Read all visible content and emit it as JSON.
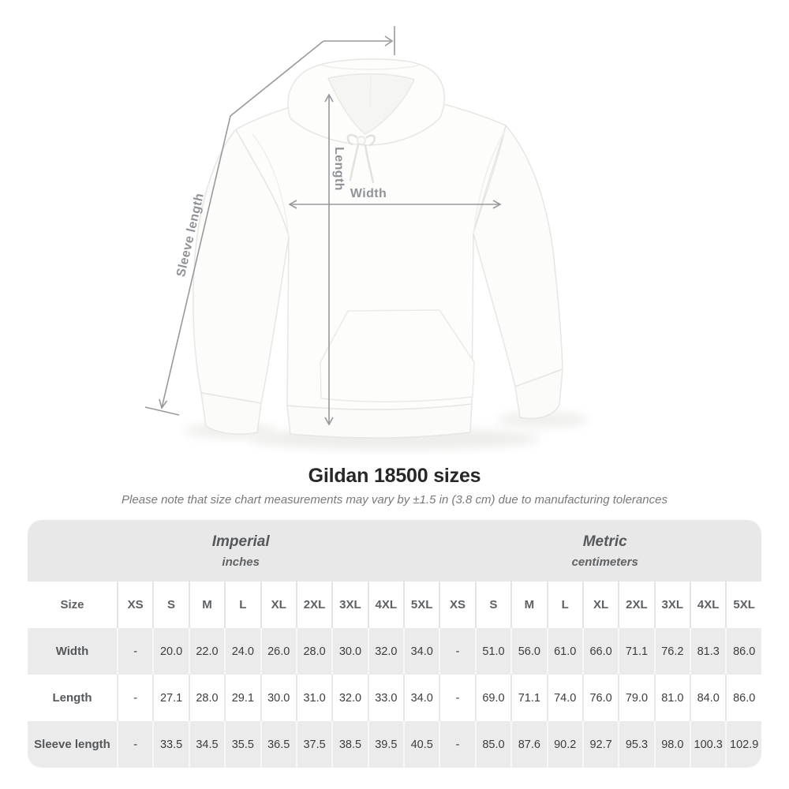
{
  "diagram": {
    "sleeve_length_label": "Sleeve length",
    "length_label": "Length",
    "width_label": "Width"
  },
  "heading": {
    "title": "Gildan 18500 sizes",
    "subtitle": "Please note that size chart measurements may vary by ±1.5 in (3.8 cm) due to manufacturing tolerances"
  },
  "table": {
    "unit_groups": [
      {
        "label": "Imperial",
        "sublabel": "inches"
      },
      {
        "label": "Metric",
        "sublabel": "centimeters"
      }
    ],
    "size_header": "Size",
    "sizes": [
      "XS",
      "S",
      "M",
      "L",
      "XL",
      "2XL",
      "3XL",
      "4XL",
      "5XL"
    ],
    "rows": [
      {
        "label": "Width",
        "imperial": [
          "-",
          "20.0",
          "22.0",
          "24.0",
          "26.0",
          "28.0",
          "30.0",
          "32.0",
          "34.0"
        ],
        "metric": [
          "-",
          "51.0",
          "56.0",
          "61.0",
          "66.0",
          "71.1",
          "76.2",
          "81.3",
          "86.0"
        ]
      },
      {
        "label": "Length",
        "imperial": [
          "-",
          "27.1",
          "28.0",
          "29.1",
          "30.0",
          "31.0",
          "32.0",
          "33.0",
          "34.0"
        ],
        "metric": [
          "-",
          "69.0",
          "71.1",
          "74.0",
          "76.0",
          "79.0",
          "81.0",
          "84.0",
          "86.0"
        ]
      },
      {
        "label": "Sleeve length",
        "imperial": [
          "-",
          "33.5",
          "34.5",
          "35.5",
          "36.5",
          "37.5",
          "38.5",
          "39.5",
          "40.5"
        ],
        "metric": [
          "-",
          "85.0",
          "87.6",
          "90.2",
          "92.7",
          "95.3",
          "98.0",
          "100.3",
          "102.9"
        ]
      }
    ]
  },
  "colors": {
    "band_gray": "#e8e8e8",
    "row_gray": "#ebebeb",
    "measure_line": "#97999b",
    "measure_label": "#8f9397",
    "title_text": "#262729",
    "subtitle_text": "#77797b",
    "cell_text": "#3b3d3f",
    "header_text": "#5d6165"
  }
}
